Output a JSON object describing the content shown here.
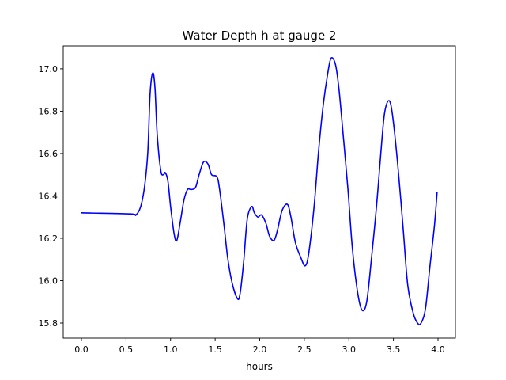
{
  "chart_data": {
    "type": "line",
    "title": "Water Depth h at gauge 2",
    "xlabel": "hours",
    "ylabel": "",
    "xlim": [
      -0.204,
      4.195
    ],
    "ylim": [
      15.729,
      17.108
    ],
    "xticks": [
      0.0,
      0.5,
      1.0,
      1.5,
      2.0,
      2.5,
      3.0,
      3.5,
      4.0
    ],
    "xtick_labels": [
      "0.0",
      "0.5",
      "1.0",
      "1.5",
      "2.0",
      "2.5",
      "3.0",
      "3.5",
      "4.0"
    ],
    "yticks": [
      15.8,
      16.0,
      16.2,
      16.4,
      16.6,
      16.8,
      17.0
    ],
    "ytick_labels": [
      "15.8",
      "16.0",
      "16.2",
      "16.4",
      "16.6",
      "16.8",
      "17.0"
    ],
    "grid": false,
    "series": [
      {
        "name": "h",
        "color": "#0000ff",
        "x": [
          0,
          0.55,
          0.61,
          0.665,
          0.71,
          0.745,
          0.77,
          0.8,
          0.825,
          0.85,
          0.89,
          0.92,
          0.94,
          0.97,
          1.0,
          1.04,
          1.07,
          1.11,
          1.15,
          1.19,
          1.23,
          1.28,
          1.32,
          1.37,
          1.42,
          1.46,
          1.52,
          1.55,
          1.6,
          1.64,
          1.69,
          1.75,
          1.78,
          1.82,
          1.86,
          1.91,
          1.94,
          1.98,
          2.02,
          2.07,
          2.11,
          2.16,
          2.2,
          2.25,
          2.31,
          2.35,
          2.4,
          2.46,
          2.51,
          2.55,
          2.61,
          2.66,
          2.71,
          2.76,
          2.8,
          2.85,
          2.89,
          2.94,
          2.99,
          3.04,
          3.1,
          3.15,
          3.2,
          3.25,
          3.31,
          3.36,
          3.4,
          3.45,
          3.49,
          3.55,
          3.61,
          3.66,
          3.72,
          3.77,
          3.81,
          3.86,
          3.91,
          3.96,
          3.99
        ],
        "y": [
          16.32,
          16.315,
          16.31,
          16.35,
          16.45,
          16.61,
          16.88,
          16.98,
          16.91,
          16.69,
          16.52,
          16.5,
          16.51,
          16.47,
          16.35,
          16.22,
          16.19,
          16.28,
          16.38,
          16.43,
          16.43,
          16.44,
          16.5,
          16.56,
          16.55,
          16.5,
          16.49,
          16.43,
          16.26,
          16.11,
          15.99,
          15.915,
          15.94,
          16.09,
          16.29,
          16.35,
          16.32,
          16.3,
          16.31,
          16.27,
          16.21,
          16.19,
          16.24,
          16.33,
          16.36,
          16.3,
          16.18,
          16.11,
          16.07,
          16.13,
          16.35,
          16.61,
          16.82,
          16.97,
          17.05,
          17.02,
          16.9,
          16.67,
          16.43,
          16.15,
          15.94,
          15.86,
          15.9,
          16.09,
          16.35,
          16.61,
          16.79,
          16.85,
          16.78,
          16.54,
          16.24,
          15.98,
          15.85,
          15.8,
          15.8,
          15.87,
          16.07,
          16.26,
          16.42
        ]
      }
    ]
  }
}
